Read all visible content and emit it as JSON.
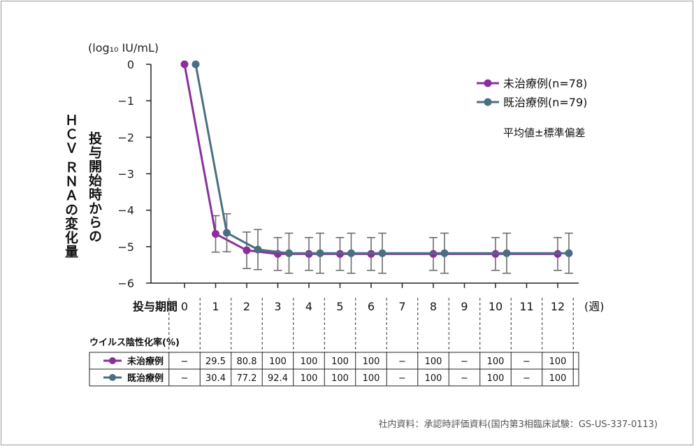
{
  "chart_data": {
    "type": "line",
    "y_unit_label": "(log₁₀ IU/mL)",
    "ylabel": "ＨＣＶ ＲＮＡの変化量",
    "ylabel2": "投与開始時からの",
    "xlabel": "投与期間",
    "x_unit": "(週)",
    "ylim": [
      -6,
      0
    ],
    "yticks": [
      "0",
      "−1",
      "−2",
      "−3",
      "−4",
      "−5",
      "−6"
    ],
    "xticks": [
      "0",
      "1",
      "2",
      "3",
      "4",
      "5",
      "6",
      "7",
      "8",
      "9",
      "10",
      "11",
      "12"
    ],
    "legend_position": "top-right",
    "legend_note": "平均値±標準偏差",
    "series": [
      {
        "name": "未治療例(n=78)",
        "short_name": "未治療例",
        "color": "#8b2f9b",
        "x": [
          0,
          1,
          2,
          3,
          4,
          5,
          6,
          8,
          10,
          12
        ],
        "y": [
          0,
          -4.65,
          -5.1,
          -5.2,
          -5.2,
          -5.2,
          -5.2,
          -5.2,
          -5.2,
          -5.2
        ],
        "err": [
          0,
          0.5,
          0.5,
          0.45,
          0.45,
          0.45,
          0.45,
          0.45,
          0.45,
          0.45
        ]
      },
      {
        "name": "既治療例(n=79)",
        "short_name": "既治療例",
        "color": "#4a6f82",
        "x": [
          0,
          1,
          2,
          3,
          4,
          5,
          6,
          8,
          10,
          12
        ],
        "y": [
          0,
          -4.62,
          -5.08,
          -5.18,
          -5.18,
          -5.18,
          -5.18,
          -5.18,
          -5.18,
          -5.18
        ],
        "err": [
          0,
          0.52,
          0.55,
          0.55,
          0.55,
          0.55,
          0.55,
          0.55,
          0.55,
          0.55
        ]
      }
    ],
    "table": {
      "title": "ウイルス陰性化率(%)",
      "rows": [
        {
          "label": "未治療例",
          "values": [
            "−",
            "29.5",
            "80.8",
            "100",
            "100",
            "100",
            "100",
            "−",
            "100",
            "−",
            "100",
            "−",
            "100"
          ]
        },
        {
          "label": "既治療例",
          "values": [
            "−",
            "30.4",
            "77.2",
            "92.4",
            "100",
            "100",
            "100",
            "−",
            "100",
            "−",
            "100",
            "−",
            "100"
          ]
        }
      ]
    }
  },
  "source_note": "社内資料：承認時評価資料(国内第3相臨床試験：GS-US-337-0113)"
}
